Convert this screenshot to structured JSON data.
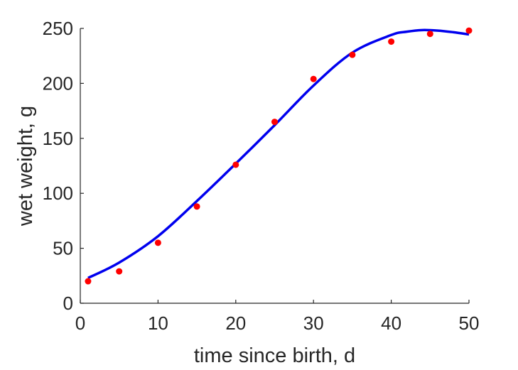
{
  "chart_data": {
    "type": "scatter",
    "title": "",
    "xlabel": "time since birth, d",
    "ylabel": "wet weight, g",
    "xlim": [
      0,
      50
    ],
    "ylim": [
      0,
      250
    ],
    "xticks": [
      0,
      10,
      20,
      30,
      40,
      50
    ],
    "yticks": [
      0,
      50,
      100,
      150,
      200,
      250
    ],
    "grid": false,
    "legend": "none",
    "series": [
      {
        "kind": "points",
        "color": "#ff0000",
        "x": [
          1,
          5,
          10,
          15,
          20,
          25,
          30,
          35,
          40,
          45,
          50
        ],
        "y": [
          20,
          29,
          55,
          88,
          126,
          165,
          204,
          226,
          238,
          245,
          248
        ]
      },
      {
        "kind": "line",
        "color": "#0000ee",
        "x": [
          1,
          5,
          10,
          15,
          20,
          25,
          30,
          35,
          40,
          42,
          44,
          46,
          48,
          50
        ],
        "y": [
          23,
          37,
          61,
          93,
          127,
          162,
          198,
          228,
          244,
          247,
          248.5,
          248,
          246.5,
          244.5
        ]
      }
    ]
  }
}
